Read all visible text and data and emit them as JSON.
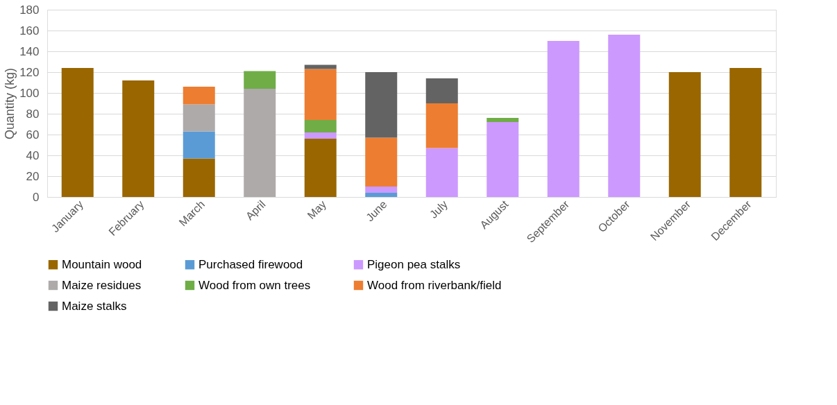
{
  "chart_data": {
    "type": "bar",
    "stacked": true,
    "ylabel": "Quantity (kg)",
    "categories": [
      "January",
      "February",
      "March",
      "April",
      "May",
      "June",
      "July",
      "August",
      "September",
      "October",
      "November",
      "December"
    ],
    "series": [
      {
        "name": "Mountain wood",
        "color": "#996600",
        "values": [
          124,
          112,
          37,
          null,
          56,
          null,
          null,
          null,
          null,
          null,
          120,
          124
        ]
      },
      {
        "name": "Purchased firewood",
        "color": "#5b9bd5",
        "values": [
          null,
          null,
          26,
          null,
          null,
          4,
          null,
          null,
          null,
          null,
          null,
          null
        ]
      },
      {
        "name": "Pigeon pea stalks",
        "color": "#cc99ff",
        "values": [
          null,
          null,
          null,
          null,
          6,
          6,
          47,
          72,
          150,
          156,
          null,
          null
        ]
      },
      {
        "name": "Maize residues",
        "color": "#aeaaaa",
        "values": [
          null,
          null,
          26,
          104,
          null,
          null,
          null,
          null,
          null,
          null,
          null,
          null
        ]
      },
      {
        "name": "Wood from own trees",
        "color": "#70ad47",
        "values": [
          null,
          null,
          null,
          17,
          12,
          null,
          null,
          4,
          null,
          null,
          null,
          null
        ]
      },
      {
        "name": "Wood from riverbank/field",
        "color": "#ed7d31",
        "values": [
          null,
          null,
          17,
          null,
          49,
          47,
          43,
          null,
          null,
          null,
          null,
          null
        ]
      },
      {
        "name": "Maize stalks",
        "color": "#636363",
        "values": [
          null,
          null,
          null,
          null,
          4,
          63,
          24,
          null,
          null,
          null,
          null,
          null
        ]
      }
    ],
    "ylim": [
      0,
      180
    ],
    "yticks": [
      0,
      20,
      40,
      60,
      80,
      100,
      120,
      140,
      160,
      180
    ],
    "grid": "y",
    "legend": "bottom"
  }
}
